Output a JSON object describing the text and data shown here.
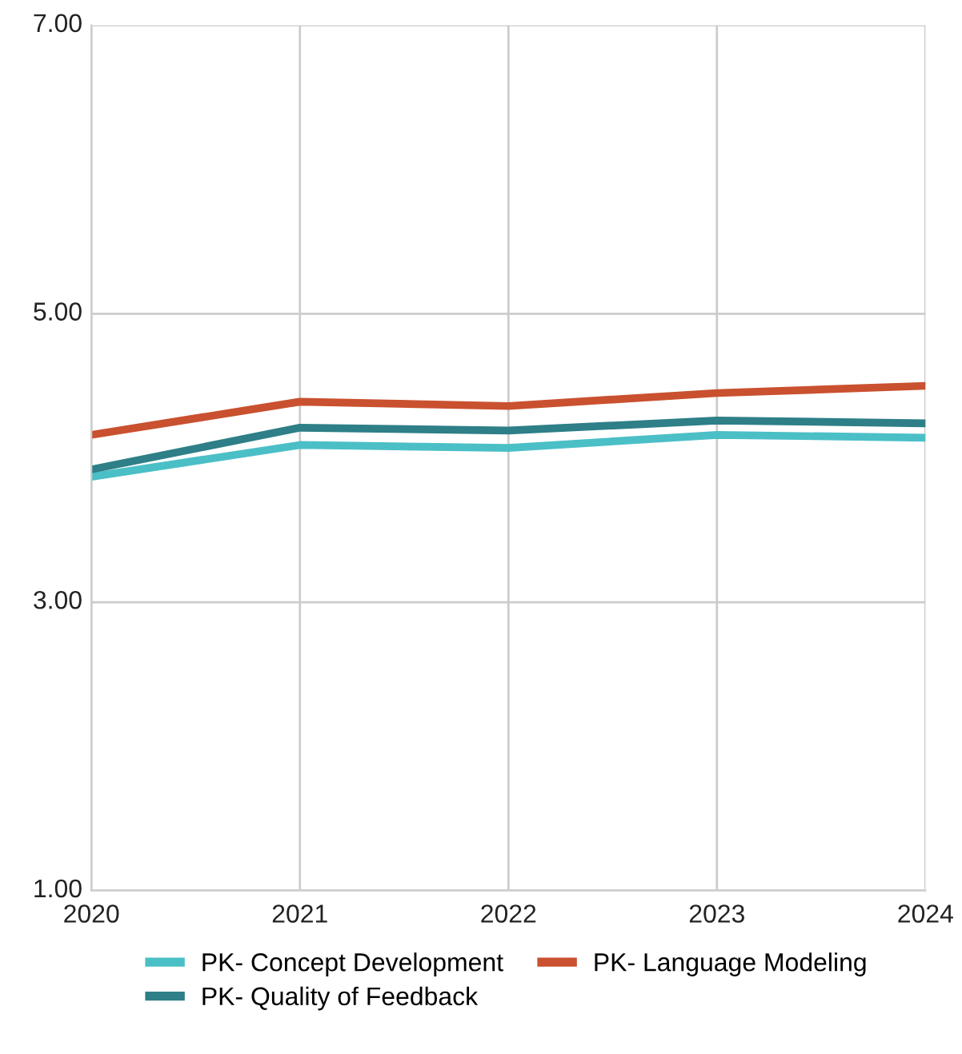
{
  "chart_data": {
    "type": "line",
    "categories": [
      "2020",
      "2021",
      "2022",
      "2023",
      "2024"
    ],
    "series": [
      {
        "name": "PK- Concept Development",
        "color": "#4bbfc6",
        "values": [
          3.87,
          4.09,
          4.07,
          4.16,
          4.14
        ]
      },
      {
        "name": "PK- Quality of Feedback",
        "color": "#2e7f87",
        "values": [
          3.92,
          4.21,
          4.19,
          4.26,
          4.24
        ]
      },
      {
        "name": "PK- Language Modeling",
        "color": "#c9512f",
        "values": [
          4.16,
          4.39,
          4.36,
          4.45,
          4.5
        ]
      }
    ],
    "ylim": [
      1,
      7
    ],
    "yticks": [
      {
        "value": 1,
        "label": "1.00"
      },
      {
        "value": 3,
        "label": "3.00"
      },
      {
        "value": 5,
        "label": "5.00"
      },
      {
        "value": 7,
        "label": "7.00"
      }
    ],
    "grid": true,
    "legend": "bottom",
    "marker": "none",
    "line_style": "solid"
  }
}
